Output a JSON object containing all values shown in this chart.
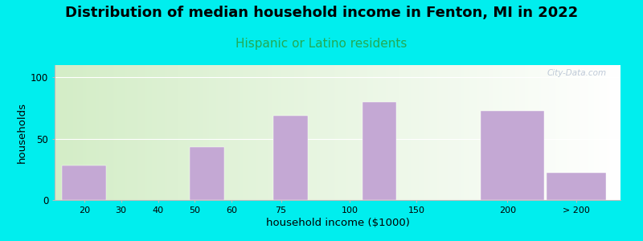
{
  "title": "Distribution of median household income in Fenton, MI in 2022",
  "subtitle": "Hispanic or Latino residents",
  "xlabel": "household income ($1000)",
  "ylabel": "households",
  "background_outer": "#00EEEE",
  "bar_color": "#C4A8D4",
  "grid_color": "#FFFFFF",
  "yticks": [
    0,
    50,
    100
  ],
  "ylim": [
    0,
    110
  ],
  "title_fontsize": 13,
  "subtitle_fontsize": 11,
  "subtitle_color": "#22AA55",
  "axis_label_fontsize": 9.5,
  "watermark": "City-Data.com",
  "bar_centers": [
    0.5,
    2.0,
    3.0,
    3.8,
    4.7,
    5.7,
    6.5,
    7.8,
    9.2,
    10.5
  ],
  "bar_widths": [
    0.9,
    0.7,
    0.7,
    0.7,
    0.7,
    0.7,
    0.7,
    0.7,
    1.3,
    1.2
  ],
  "bar_heights": [
    28,
    0,
    43,
    0,
    69,
    0,
    80,
    0,
    73,
    22
  ],
  "xtick_pos": [
    0.5,
    1.25,
    2.0,
    2.75,
    3.5,
    4.5,
    5.9,
    7.25,
    9.1,
    10.5
  ],
  "xtick_labels": [
    "20",
    "30",
    "40",
    "50",
    "60",
    "75",
    "100",
    "150",
    "200",
    "> 200"
  ],
  "xlim": [
    -0.1,
    11.4
  ]
}
